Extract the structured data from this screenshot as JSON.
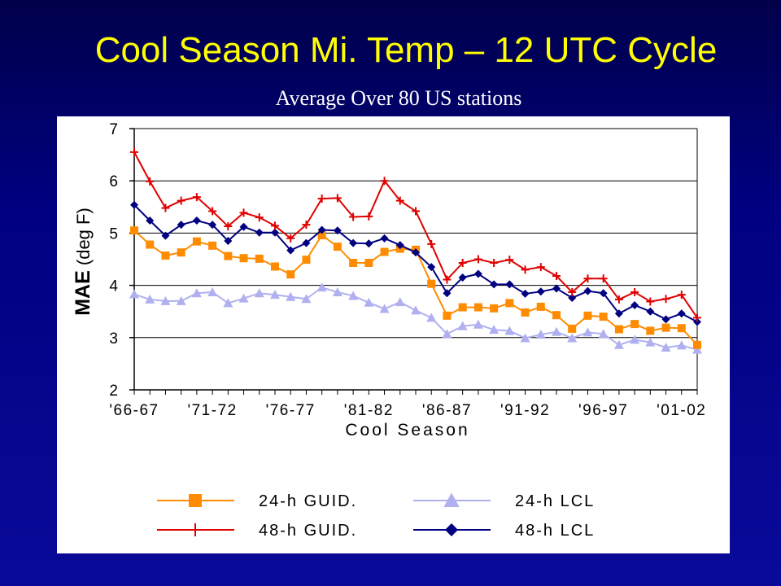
{
  "slide": {
    "title": "Cool Season Mi. Temp – 12 UTC Cycle",
    "subtitle": "Average Over 80 US stations"
  },
  "colors": {
    "background": "#000080",
    "title": "#ffff00",
    "subtitle": "#ffffff",
    "guid24": "#ff8c00",
    "guid48": "#e00000",
    "lcl24": "#b0b0f0",
    "lcl48": "#000080"
  },
  "chart_data": {
    "type": "line",
    "title": "",
    "xlabel": "Cool Season",
    "ylabel": "MAE (deg F)",
    "ylim": [
      2,
      7
    ],
    "yticks": [
      2,
      3,
      4,
      5,
      6,
      7
    ],
    "grid": true,
    "legend_position": "bottom",
    "categories": [
      "'66-67",
      "'67-68",
      "'68-69",
      "'69-70",
      "'70-71",
      "'71-72",
      "'72-73",
      "'73-74",
      "'74-75",
      "'75-76",
      "'76-77",
      "'77-78",
      "'78-79",
      "'79-80",
      "'80-81",
      "'81-82",
      "'82-83",
      "'83-84",
      "'84-85",
      "'85-86",
      "'86-87",
      "'87-88",
      "'88-89",
      "'89-90",
      "'90-91",
      "'91-92",
      "'92-93",
      "'93-94",
      "'94-95",
      "'95-96",
      "'96-97",
      "'97-98",
      "'98-99",
      "'99-00",
      "'00-01",
      "'01-02",
      "'02-03"
    ],
    "tick_labels": [
      {
        "index": 0,
        "label": "'66-67"
      },
      {
        "index": 5,
        "label": "'71-72"
      },
      {
        "index": 10,
        "label": "'76-77"
      },
      {
        "index": 15,
        "label": "'81-82"
      },
      {
        "index": 20,
        "label": "'86-87"
      },
      {
        "index": 25,
        "label": "'91-92"
      },
      {
        "index": 30,
        "label": "'96-97"
      },
      {
        "index": 35,
        "label": "'01-02"
      }
    ],
    "series": [
      {
        "name": "24-h GUID.",
        "key": "guid24",
        "marker": "square",
        "values": [
          5.05,
          4.78,
          4.57,
          4.63,
          4.84,
          4.76,
          4.56,
          4.52,
          4.51,
          4.36,
          4.21,
          4.49,
          4.96,
          4.74,
          4.43,
          4.43,
          4.64,
          4.7,
          4.68,
          4.03,
          3.42,
          3.58,
          3.58,
          3.56,
          3.66,
          3.48,
          3.59,
          3.43,
          3.17,
          3.42,
          3.4,
          3.16,
          3.26,
          3.13,
          3.19,
          3.18,
          2.86
        ]
      },
      {
        "name": "24-h LCL",
        "key": "lcl24",
        "marker": "triangle",
        "values": [
          3.83,
          3.73,
          3.7,
          3.7,
          3.85,
          3.87,
          3.66,
          3.75,
          3.85,
          3.82,
          3.78,
          3.74,
          3.96,
          3.87,
          3.8,
          3.67,
          3.55,
          3.68,
          3.52,
          3.38,
          3.07,
          3.22,
          3.25,
          3.15,
          3.13,
          2.99,
          3.06,
          3.11,
          2.99,
          3.1,
          3.07,
          2.86,
          2.96,
          2.91,
          2.81,
          2.85,
          2.77
        ]
      },
      {
        "name": "48-h GUID.",
        "key": "guid48",
        "marker": "plus",
        "values": [
          6.55,
          5.99,
          5.48,
          5.62,
          5.69,
          5.42,
          5.13,
          5.39,
          5.3,
          5.14,
          4.9,
          5.16,
          5.66,
          5.67,
          5.31,
          5.32,
          6.0,
          5.62,
          5.42,
          4.79,
          4.11,
          4.43,
          4.5,
          4.43,
          4.49,
          4.3,
          4.35,
          4.18,
          3.87,
          4.13,
          4.13,
          3.73,
          3.87,
          3.69,
          3.74,
          3.82,
          3.38
        ]
      },
      {
        "name": "48-h LCL",
        "key": "lcl48",
        "marker": "diamond",
        "values": [
          5.54,
          5.24,
          4.95,
          5.16,
          5.24,
          5.16,
          4.85,
          5.12,
          5.01,
          5.01,
          4.67,
          4.81,
          5.06,
          5.05,
          4.81,
          4.8,
          4.9,
          4.77,
          4.63,
          4.35,
          3.85,
          4.15,
          4.22,
          4.02,
          4.02,
          3.84,
          3.88,
          3.94,
          3.76,
          3.89,
          3.85,
          3.46,
          3.62,
          3.5,
          3.35,
          3.46,
          3.3
        ]
      }
    ]
  }
}
